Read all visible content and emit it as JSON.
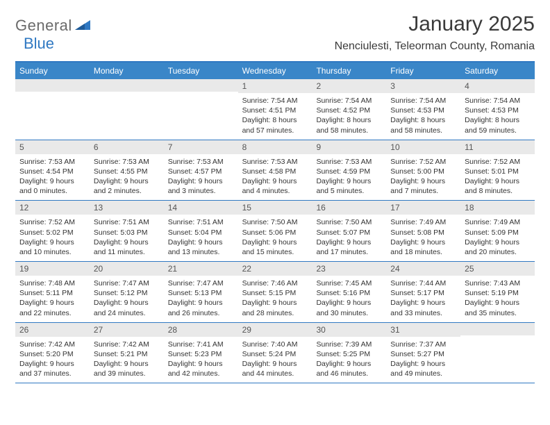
{
  "logo": {
    "word1": "General",
    "word2": "Blue"
  },
  "title": "January 2025",
  "location": "Nenciulesti, Teleorman County, Romania",
  "colors": {
    "header_bar": "#3a86c8",
    "border": "#2f78c2",
    "daynum_bg": "#e9e9e9",
    "text": "#333333",
    "logo_gray": "#6a6a6a",
    "logo_blue": "#2f78c2",
    "background": "#ffffff"
  },
  "typography": {
    "title_fontsize": 30,
    "location_fontsize": 16,
    "dow_fontsize": 12,
    "daynum_fontsize": 12,
    "detail_fontsize": 10.5
  },
  "dow": [
    "Sunday",
    "Monday",
    "Tuesday",
    "Wednesday",
    "Thursday",
    "Friday",
    "Saturday"
  ],
  "weeks": [
    [
      null,
      null,
      null,
      {
        "n": "1",
        "sr": "Sunrise: 7:54 AM",
        "ss": "Sunset: 4:51 PM",
        "d1": "Daylight: 8 hours",
        "d2": "and 57 minutes."
      },
      {
        "n": "2",
        "sr": "Sunrise: 7:54 AM",
        "ss": "Sunset: 4:52 PM",
        "d1": "Daylight: 8 hours",
        "d2": "and 58 minutes."
      },
      {
        "n": "3",
        "sr": "Sunrise: 7:54 AM",
        "ss": "Sunset: 4:53 PM",
        "d1": "Daylight: 8 hours",
        "d2": "and 58 minutes."
      },
      {
        "n": "4",
        "sr": "Sunrise: 7:54 AM",
        "ss": "Sunset: 4:53 PM",
        "d1": "Daylight: 8 hours",
        "d2": "and 59 minutes."
      }
    ],
    [
      {
        "n": "5",
        "sr": "Sunrise: 7:53 AM",
        "ss": "Sunset: 4:54 PM",
        "d1": "Daylight: 9 hours",
        "d2": "and 0 minutes."
      },
      {
        "n": "6",
        "sr": "Sunrise: 7:53 AM",
        "ss": "Sunset: 4:55 PM",
        "d1": "Daylight: 9 hours",
        "d2": "and 2 minutes."
      },
      {
        "n": "7",
        "sr": "Sunrise: 7:53 AM",
        "ss": "Sunset: 4:57 PM",
        "d1": "Daylight: 9 hours",
        "d2": "and 3 minutes."
      },
      {
        "n": "8",
        "sr": "Sunrise: 7:53 AM",
        "ss": "Sunset: 4:58 PM",
        "d1": "Daylight: 9 hours",
        "d2": "and 4 minutes."
      },
      {
        "n": "9",
        "sr": "Sunrise: 7:53 AM",
        "ss": "Sunset: 4:59 PM",
        "d1": "Daylight: 9 hours",
        "d2": "and 5 minutes."
      },
      {
        "n": "10",
        "sr": "Sunrise: 7:52 AM",
        "ss": "Sunset: 5:00 PM",
        "d1": "Daylight: 9 hours",
        "d2": "and 7 minutes."
      },
      {
        "n": "11",
        "sr": "Sunrise: 7:52 AM",
        "ss": "Sunset: 5:01 PM",
        "d1": "Daylight: 9 hours",
        "d2": "and 8 minutes."
      }
    ],
    [
      {
        "n": "12",
        "sr": "Sunrise: 7:52 AM",
        "ss": "Sunset: 5:02 PM",
        "d1": "Daylight: 9 hours",
        "d2": "and 10 minutes."
      },
      {
        "n": "13",
        "sr": "Sunrise: 7:51 AM",
        "ss": "Sunset: 5:03 PM",
        "d1": "Daylight: 9 hours",
        "d2": "and 11 minutes."
      },
      {
        "n": "14",
        "sr": "Sunrise: 7:51 AM",
        "ss": "Sunset: 5:04 PM",
        "d1": "Daylight: 9 hours",
        "d2": "and 13 minutes."
      },
      {
        "n": "15",
        "sr": "Sunrise: 7:50 AM",
        "ss": "Sunset: 5:06 PM",
        "d1": "Daylight: 9 hours",
        "d2": "and 15 minutes."
      },
      {
        "n": "16",
        "sr": "Sunrise: 7:50 AM",
        "ss": "Sunset: 5:07 PM",
        "d1": "Daylight: 9 hours",
        "d2": "and 17 minutes."
      },
      {
        "n": "17",
        "sr": "Sunrise: 7:49 AM",
        "ss": "Sunset: 5:08 PM",
        "d1": "Daylight: 9 hours",
        "d2": "and 18 minutes."
      },
      {
        "n": "18",
        "sr": "Sunrise: 7:49 AM",
        "ss": "Sunset: 5:09 PM",
        "d1": "Daylight: 9 hours",
        "d2": "and 20 minutes."
      }
    ],
    [
      {
        "n": "19",
        "sr": "Sunrise: 7:48 AM",
        "ss": "Sunset: 5:11 PM",
        "d1": "Daylight: 9 hours",
        "d2": "and 22 minutes."
      },
      {
        "n": "20",
        "sr": "Sunrise: 7:47 AM",
        "ss": "Sunset: 5:12 PM",
        "d1": "Daylight: 9 hours",
        "d2": "and 24 minutes."
      },
      {
        "n": "21",
        "sr": "Sunrise: 7:47 AM",
        "ss": "Sunset: 5:13 PM",
        "d1": "Daylight: 9 hours",
        "d2": "and 26 minutes."
      },
      {
        "n": "22",
        "sr": "Sunrise: 7:46 AM",
        "ss": "Sunset: 5:15 PM",
        "d1": "Daylight: 9 hours",
        "d2": "and 28 minutes."
      },
      {
        "n": "23",
        "sr": "Sunrise: 7:45 AM",
        "ss": "Sunset: 5:16 PM",
        "d1": "Daylight: 9 hours",
        "d2": "and 30 minutes."
      },
      {
        "n": "24",
        "sr": "Sunrise: 7:44 AM",
        "ss": "Sunset: 5:17 PM",
        "d1": "Daylight: 9 hours",
        "d2": "and 33 minutes."
      },
      {
        "n": "25",
        "sr": "Sunrise: 7:43 AM",
        "ss": "Sunset: 5:19 PM",
        "d1": "Daylight: 9 hours",
        "d2": "and 35 minutes."
      }
    ],
    [
      {
        "n": "26",
        "sr": "Sunrise: 7:42 AM",
        "ss": "Sunset: 5:20 PM",
        "d1": "Daylight: 9 hours",
        "d2": "and 37 minutes."
      },
      {
        "n": "27",
        "sr": "Sunrise: 7:42 AM",
        "ss": "Sunset: 5:21 PM",
        "d1": "Daylight: 9 hours",
        "d2": "and 39 minutes."
      },
      {
        "n": "28",
        "sr": "Sunrise: 7:41 AM",
        "ss": "Sunset: 5:23 PM",
        "d1": "Daylight: 9 hours",
        "d2": "and 42 minutes."
      },
      {
        "n": "29",
        "sr": "Sunrise: 7:40 AM",
        "ss": "Sunset: 5:24 PM",
        "d1": "Daylight: 9 hours",
        "d2": "and 44 minutes."
      },
      {
        "n": "30",
        "sr": "Sunrise: 7:39 AM",
        "ss": "Sunset: 5:25 PM",
        "d1": "Daylight: 9 hours",
        "d2": "and 46 minutes."
      },
      {
        "n": "31",
        "sr": "Sunrise: 7:37 AM",
        "ss": "Sunset: 5:27 PM",
        "d1": "Daylight: 9 hours",
        "d2": "and 49 minutes."
      },
      null
    ]
  ]
}
